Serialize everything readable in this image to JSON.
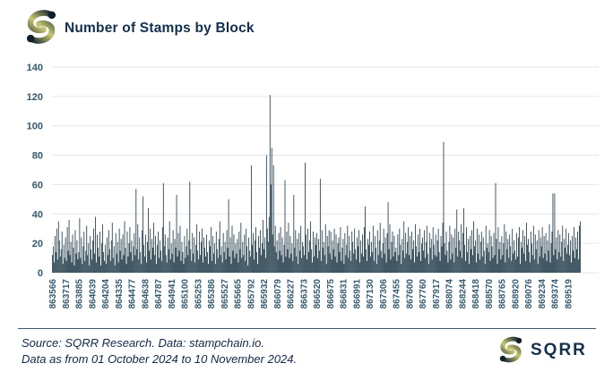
{
  "header": {
    "title": "Number of Stamps by Block"
  },
  "brand": {
    "wordmark": "SQRR",
    "icon": "sqrr-s-icon"
  },
  "footer": {
    "source_line": "Source: SQRR Research. Data: stampchain.io.",
    "range_line": "Data as from 01 October 2024 to 10 November 2024."
  },
  "colors": {
    "bar": "#14303f",
    "title_navy": "#12304e",
    "tick_label": "#34596e",
    "gridline": "#e4e6e9",
    "divider": "#3d5570",
    "logo_olive": "#c8c973",
    "logo_navy": "#101f2c"
  },
  "chart_data": {
    "type": "bar",
    "title": "Number of Stamps by Block",
    "xlabel": "",
    "ylabel": "",
    "ylim": [
      0,
      140
    ],
    "yticks": [
      0,
      20,
      40,
      60,
      80,
      100,
      120,
      140
    ],
    "grid": "horizontal",
    "legend": "none",
    "x_axis_note": "bitcoin block heights 863566-869519; one bar per block bucket, every 15th bar labeled",
    "label_every": 15,
    "x_tick_labels": [
      "863566",
      "863717",
      "863885",
      "864039",
      "864204",
      "864335",
      "864477",
      "864638",
      "864787",
      "864941",
      "865100",
      "865253",
      "865386",
      "865527",
      "865665",
      "865792",
      "865932",
      "866079",
      "866227",
      "866373",
      "866520",
      "866675",
      "866831",
      "866991",
      "867130",
      "867306",
      "867455",
      "867600",
      "867760",
      "867917",
      "868074",
      "868244",
      "868418",
      "868570",
      "868765",
      "868920",
      "869076",
      "869234",
      "869374",
      "869519"
    ],
    "values": [
      12,
      18,
      7,
      25,
      14,
      30,
      9,
      35,
      22,
      11,
      16,
      28,
      6,
      19,
      10,
      24,
      8,
      31,
      15,
      36,
      12,
      21,
      7,
      26,
      17,
      5,
      29,
      13,
      22,
      9,
      14,
      37,
      10,
      24,
      6,
      18,
      28,
      8,
      15,
      32,
      12,
      20,
      5,
      25,
      16,
      9,
      22,
      30,
      13,
      38,
      7,
      26,
      17,
      11,
      28,
      5,
      20,
      33,
      14,
      8,
      19,
      6,
      24,
      12,
      29,
      16,
      8,
      22,
      34,
      10,
      18,
      5,
      27,
      13,
      21,
      7,
      30,
      15,
      23,
      9,
      26,
      12,
      35,
      17,
      6,
      28,
      11,
      20,
      31,
      14,
      22,
      8,
      18,
      27,
      12,
      57,
      16,
      33,
      9,
      24,
      14,
      6,
      29,
      52,
      19,
      11,
      26,
      7,
      21,
      44,
      15,
      30,
      9,
      23,
      17,
      34,
      12,
      25,
      6,
      19,
      28,
      10,
      22,
      15,
      8,
      31,
      61,
      18,
      26,
      12,
      7,
      24,
      16,
      35,
      9,
      20,
      13,
      29,
      7,
      23,
      17,
      53,
      11,
      27,
      15,
      32,
      8,
      21,
      14,
      6,
      25,
      10,
      18,
      30,
      12,
      22,
      62,
      16,
      8,
      27,
      13,
      24,
      7,
      19,
      33,
      15,
      9,
      28,
      12,
      21,
      30,
      7,
      24,
      17,
      11,
      26,
      14,
      6,
      22,
      18,
      31,
      8,
      25,
      13,
      20,
      6,
      28,
      16,
      10,
      23,
      35,
      12,
      18,
      7,
      27,
      14,
      21,
      9,
      29,
      17,
      50,
      11,
      24,
      6,
      32,
      15,
      26,
      10,
      20,
      13,
      23,
      7,
      28,
      16,
      34,
      10,
      21,
      12,
      26,
      8,
      30,
      18,
      5,
      24,
      15,
      11,
      73,
      19,
      27,
      9,
      22,
      31,
      14,
      6,
      25,
      17,
      29,
      12,
      20,
      36,
      16,
      24,
      10,
      80,
      30,
      21,
      38,
      121,
      60,
      85,
      26,
      73,
      18,
      32,
      14,
      22,
      9,
      27,
      15,
      31,
      12,
      24,
      7,
      19,
      63,
      11,
      28,
      16,
      34,
      10,
      25,
      13,
      20,
      8,
      53,
      17,
      29,
      11,
      23,
      6,
      27,
      15,
      32,
      10,
      21,
      18,
      12,
      75,
      26,
      9,
      30,
      14,
      22,
      35,
      16,
      7,
      28,
      11,
      24,
      19,
      27,
      10,
      23,
      15,
      64,
      8,
      29,
      17,
      21,
      12,
      33,
      6,
      25,
      18,
      29,
      13,
      28,
      9,
      22,
      16,
      30,
      11,
      26,
      7,
      20,
      24,
      14,
      31,
      8,
      17,
      23,
      6,
      27,
      12,
      19,
      32,
      10,
      25,
      15,
      8,
      28,
      21,
      13,
      30,
      16,
      9,
      24,
      18,
      29,
      7,
      22,
      13,
      26,
      11,
      31,
      45,
      16,
      8,
      23,
      19,
      28,
      11,
      21,
      14,
      32,
      8,
      25,
      17,
      6,
      29,
      12,
      22,
      34,
      15,
      10,
      20,
      30,
      13,
      24,
      7,
      27,
      48,
      16,
      33,
      9,
      21,
      28,
      11,
      25,
      14,
      17,
      8,
      26,
      12,
      30,
      19,
      6,
      23,
      15,
      35,
      10,
      27,
      13,
      21,
      31,
      12,
      25,
      9,
      28,
      16,
      22,
      7,
      33,
      18,
      11,
      26,
      14,
      30,
      8,
      20,
      24,
      15,
      29,
      10,
      21,
      32,
      13,
      6,
      27,
      17,
      23,
      9,
      31,
      19,
      12,
      26,
      11,
      22,
      30,
      14,
      8,
      25,
      18,
      34,
      89,
      20,
      12,
      28,
      15,
      7,
      21,
      32,
      9,
      26,
      13,
      24,
      7,
      30,
      17,
      43,
      11,
      28,
      22,
      15,
      33,
      10,
      27,
      44,
      19,
      8,
      31,
      14,
      23,
      6,
      25,
      16,
      29,
      12,
      35,
      18,
      22,
      7,
      30,
      13,
      26,
      9,
      21,
      28,
      11,
      24,
      15,
      6,
      32,
      17,
      20,
      14,
      29,
      8,
      25,
      18,
      10,
      27,
      12,
      61,
      23,
      6,
      31,
      16,
      21,
      9,
      25,
      12,
      20,
      33,
      7,
      28,
      16,
      23,
      10,
      26,
      18,
      8,
      30,
      13,
      22,
      15,
      9,
      27,
      11,
      24,
      31,
      6,
      21,
      17,
      29,
      13,
      25,
      8,
      34,
      19,
      23,
      14,
      7,
      28,
      20,
      12,
      32,
      9,
      26,
      16,
      22,
      6,
      29,
      11,
      24,
      18,
      31,
      10,
      25,
      13,
      27,
      8,
      22,
      15,
      33,
      7,
      20,
      28,
      54,
      12,
      54,
      16,
      24,
      9,
      29,
      14,
      26,
      11,
      21,
      32,
      8,
      23,
      17,
      30,
      13,
      19,
      27,
      12,
      22,
      7,
      25,
      15,
      31,
      10,
      24,
      16,
      28,
      9,
      32,
      35
    ]
  }
}
